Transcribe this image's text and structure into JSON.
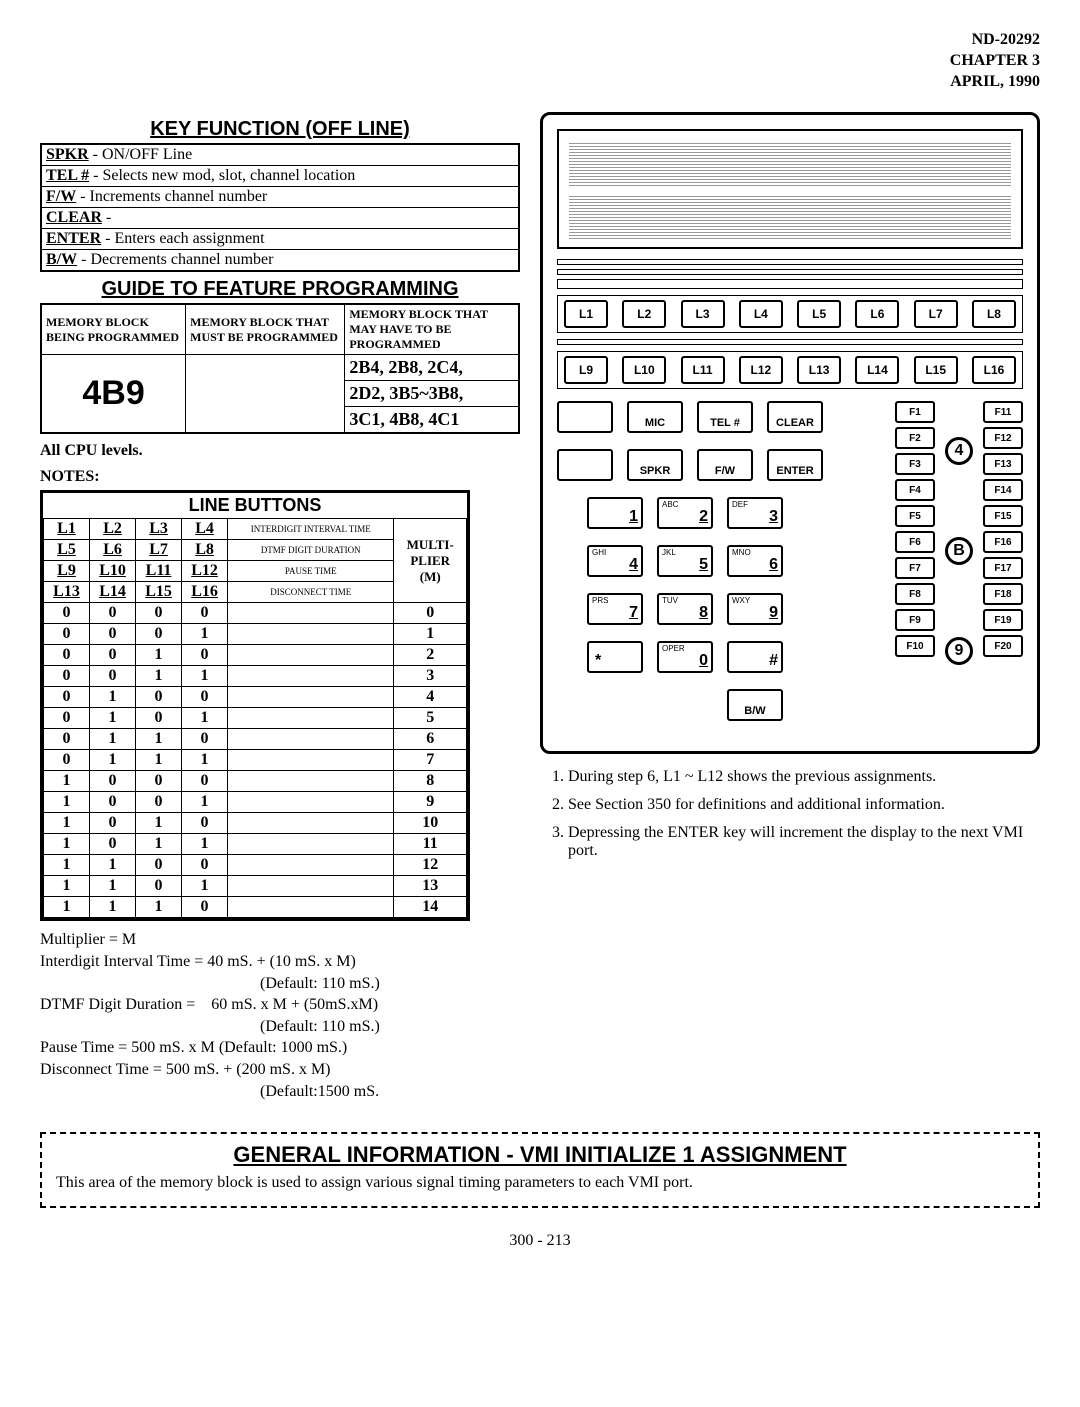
{
  "header": {
    "doc": "ND-20292",
    "chapter": "CHAPTER 3",
    "date": "APRIL, 1990"
  },
  "keyFunction": {
    "title": "KEY FUNCTION (OFF LINE)",
    "rows": [
      {
        "key": "SPKR",
        "desc": " - ON/OFF Line"
      },
      {
        "key": "TEL #",
        "desc": " - Selects new mod, slot, channel location"
      },
      {
        "key": "F/W",
        "desc": " - Increments channel number"
      },
      {
        "key": "CLEAR",
        "desc": " -"
      },
      {
        "key": "ENTER",
        "desc": " - Enters each assignment"
      },
      {
        "key": "B/W",
        "desc": " - Decrements channel number"
      }
    ]
  },
  "guide": {
    "title": "GUIDE TO FEATURE PROGRAMMING",
    "h1": "MEMORY BLOCK BEING PROGRAMMED",
    "h2": "MEMORY BLOCK THAT MUST BE PROGRAMMED",
    "h3": "MEMORY BLOCK THAT MAY HAVE TO BE PROGRAMMED",
    "block": "4B9",
    "r1": "2B4, 2B8, 2C4,",
    "r2": "2D2, 3B5~3B8,",
    "r3": "3C1, 4B8, 4C1"
  },
  "cpuLine": "All CPU levels.",
  "notesLabel": "NOTES:",
  "lineButtons": {
    "title": "LINE BUTTONS",
    "labelsRow1": [
      "L1",
      "L2",
      "L3",
      "L4"
    ],
    "labelsRow2": [
      "L5",
      "L6",
      "L7",
      "L8"
    ],
    "labelsRow3": [
      "L9",
      "L10",
      "L11",
      "L12"
    ],
    "labelsRow4": [
      "L13",
      "L14",
      "L15",
      "L16"
    ],
    "side1": "INTERDIGIT INTERVAL TIME",
    "side2": "DTMF DIGIT DURATION",
    "side3": "PAUSE TIME",
    "side4": "DISCONNECT TIME",
    "multiHdr": "MULTI-\nPLIER\n(M)",
    "rows": [
      [
        "0",
        "0",
        "0",
        "0",
        "0"
      ],
      [
        "0",
        "0",
        "0",
        "1",
        "1"
      ],
      [
        "0",
        "0",
        "1",
        "0",
        "2"
      ],
      [
        "0",
        "0",
        "1",
        "1",
        "3"
      ],
      [
        "0",
        "1",
        "0",
        "0",
        "4"
      ],
      [
        "0",
        "1",
        "0",
        "1",
        "5"
      ],
      [
        "0",
        "1",
        "1",
        "0",
        "6"
      ],
      [
        "0",
        "1",
        "1",
        "1",
        "7"
      ],
      [
        "1",
        "0",
        "0",
        "0",
        "8"
      ],
      [
        "1",
        "0",
        "0",
        "1",
        "9"
      ],
      [
        "1",
        "0",
        "1",
        "0",
        "10"
      ],
      [
        "1",
        "0",
        "1",
        "1",
        "11"
      ],
      [
        "1",
        "1",
        "0",
        "0",
        "12"
      ],
      [
        "1",
        "1",
        "0",
        "1",
        "13"
      ],
      [
        "1",
        "1",
        "1",
        "0",
        "14"
      ]
    ]
  },
  "formulas": {
    "l1": "Multiplier = M",
    "l2": "Interdigit Interval Time = 40 mS. + (10 mS. x M)",
    "l3": "(Default: 110 mS.)",
    "l4": "DTMF Digit Duration =",
    "l4b": "60 mS. x M + (50mS.xM)",
    "l5": "(Default: 110 mS.)",
    "l6": "Pause Time = 500 mS. x M (Default: 1000 mS.)",
    "l7": "Disconnect Time = 500 mS. + (200 mS. x M)",
    "l8": "(Default:1500 mS."
  },
  "device": {
    "lrow1": [
      "L1",
      "L2",
      "L3",
      "L4",
      "L5",
      "L6",
      "L7",
      "L8"
    ],
    "lrow2": [
      "L9",
      "L10",
      "L11",
      "L12",
      "L13",
      "L14",
      "L15",
      "L16"
    ],
    "row1": [
      {
        "lab": "MIC"
      },
      {
        "lab": "TEL #"
      },
      {
        "lab": "CLEAR"
      }
    ],
    "row2": [
      {
        "lab": "SPKR"
      },
      {
        "lab": "F/W"
      },
      {
        "lab": "ENTER"
      }
    ],
    "numpad": [
      [
        {
          "n": "1"
        },
        {
          "s": "ABC",
          "n": "2"
        },
        {
          "s": "DEF",
          "n": "3"
        }
      ],
      [
        {
          "s": "GHI",
          "n": "4"
        },
        {
          "s": "JKL",
          "n": "5"
        },
        {
          "s": "MNO",
          "n": "6"
        }
      ],
      [
        {
          "s": "PRS",
          "n": "7"
        },
        {
          "s": "TUV",
          "n": "8"
        },
        {
          "s": "WXY",
          "n": "9"
        }
      ],
      [
        {
          "star": "*"
        },
        {
          "s": "OPER",
          "n": "0"
        },
        {
          "hash": "#"
        }
      ]
    ],
    "bw": "B/W",
    "fcol1": [
      "F1",
      "F2",
      "F3",
      "F4",
      "F5",
      "F6",
      "F7",
      "F8",
      "F9",
      "F10"
    ],
    "fcol2": [
      "F11",
      "F12",
      "F13",
      "F14",
      "F15",
      "F16",
      "F17",
      "F18",
      "F19",
      "F20"
    ],
    "circles": [
      "4",
      "B",
      "9"
    ]
  },
  "rightNotes": [
    "During step 6, L1 ~ L12 shows the previous assignments.",
    "See Section 350 for definitions and additional information.",
    "Depressing the ENTER key will increment the display to the next VMI port."
  ],
  "general": {
    "title": "GENERAL INFORMATION - VMI INITIALIZE 1 ASSIGNMENT",
    "text": "This area of the memory block is used to assign various signal timing parameters to each VMI port."
  },
  "pageNum": "300 - 213"
}
